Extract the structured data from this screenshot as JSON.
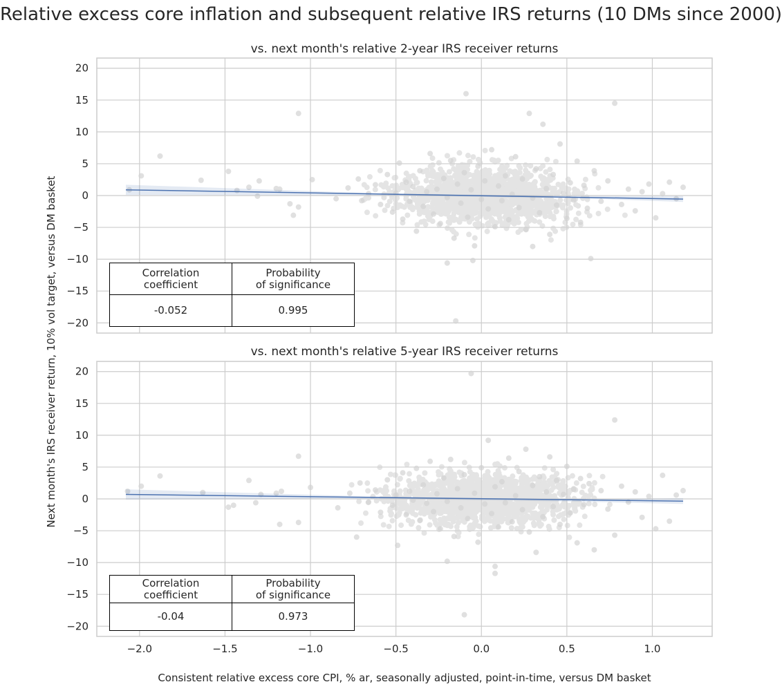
{
  "title": "Relative excess core inflation and subsequent relative IRS returns (10 DMs since 2000)",
  "xlabel": "Consistent relative excess core CPI, % ar, seasonally adjusted, point-in-time, versus DM basket",
  "ylabel": "Next month's IRS receiver return, 10% vol target, versus DM basket",
  "colors": {
    "points": "#d3d3d3",
    "regression": "#4c72b0",
    "grid": "#cccccc",
    "frame": "#cccccc"
  },
  "chart_data": [
    {
      "type": "scatter",
      "title": "vs. next month's relative 2-year IRS receiver returns",
      "xlim": [
        -2.25,
        1.35
      ],
      "ylim": [
        -21.6,
        21.6
      ],
      "xticks": [
        -2.0,
        -1.5,
        -1.0,
        -0.5,
        0.0,
        0.5,
        1.0
      ],
      "xtick_labels": [
        "−2.0",
        "−1.5",
        "−1.0",
        "−0.5",
        "0.0",
        "0.5",
        "1.0"
      ],
      "yticks": [
        20,
        15,
        10,
        5,
        0,
        -5,
        -10,
        -15,
        -20
      ],
      "ytick_labels": [
        "20",
        "15",
        "10",
        "5",
        "0",
        "−5",
        "−10",
        "−15",
        "−20"
      ],
      "grid": true,
      "regression": {
        "x": [
          -2.08,
          1.18
        ],
        "y": [
          0.9,
          -0.55
        ]
      },
      "points": [
        [
          -2.06,
          0.9
        ],
        [
          -1.99,
          3.1
        ],
        [
          -1.88,
          6.2
        ],
        [
          -1.64,
          2.4
        ],
        [
          -1.48,
          3.8
        ],
        [
          -1.43,
          0.8
        ],
        [
          -1.36,
          1.3
        ],
        [
          -1.3,
          2.3
        ],
        [
          -1.31,
          -0.1
        ],
        [
          -1.2,
          1.1
        ],
        [
          -1.18,
          1.0
        ],
        [
          -1.12,
          -1.3
        ],
        [
          -1.1,
          -3.1
        ],
        [
          -1.07,
          -1.8
        ],
        [
          -1.07,
          12.9
        ],
        [
          -0.99,
          2.5
        ],
        [
          -0.85,
          -0.5
        ],
        [
          -0.78,
          1.2
        ],
        [
          -0.72,
          2.6
        ],
        [
          -0.7,
          -0.8
        ],
        [
          -0.66,
          0.3
        ],
        [
          -0.62,
          1.7
        ],
        [
          -0.59,
          -1.4
        ],
        [
          -0.55,
          3.3
        ],
        [
          -0.52,
          -2.6
        ],
        [
          -0.5,
          0.4
        ],
        [
          -0.48,
          5.1
        ],
        [
          -0.46,
          -3.7
        ],
        [
          -0.44,
          2.1
        ],
        [
          -0.42,
          -0.9
        ],
        [
          -0.4,
          1.4
        ],
        [
          -0.38,
          -5.6
        ],
        [
          -0.36,
          3.9
        ],
        [
          -0.34,
          -1.7
        ],
        [
          -0.32,
          0.6
        ],
        [
          -0.3,
          6.6
        ],
        [
          -0.28,
          -2.9
        ],
        [
          -0.26,
          1.0
        ],
        [
          -0.24,
          -4.4
        ],
        [
          -0.22,
          2.7
        ],
        [
          -0.2,
          -0.3
        ],
        [
          -0.18,
          5.5
        ],
        [
          -0.16,
          -6.7
        ],
        [
          -0.14,
          1.8
        ],
        [
          -0.12,
          -1.2
        ],
        [
          -0.1,
          3.6
        ],
        [
          -0.09,
          16.0
        ],
        [
          -0.08,
          -3.4
        ],
        [
          -0.06,
          0.9
        ],
        [
          -0.04,
          -7.9
        ],
        [
          -0.02,
          4.6
        ],
        [
          0.0,
          -0.6
        ],
        [
          0.02,
          2.3
        ],
        [
          0.04,
          -2.1
        ],
        [
          0.06,
          7.2
        ],
        [
          0.08,
          -4.9
        ],
        [
          0.1,
          1.5
        ],
        [
          0.12,
          -0.8
        ],
        [
          0.14,
          3.1
        ],
        [
          0.16,
          -3.8
        ],
        [
          0.18,
          0.2
        ],
        [
          0.2,
          6.1
        ],
        [
          0.22,
          -1.9
        ],
        [
          0.24,
          2.6
        ],
        [
          0.26,
          -5.3
        ],
        [
          0.28,
          12.9
        ],
        [
          0.3,
          -0.4
        ],
        [
          0.32,
          4.2
        ],
        [
          0.34,
          -2.7
        ],
        [
          0.36,
          11.2
        ],
        [
          0.38,
          1.1
        ],
        [
          0.4,
          -6.1
        ],
        [
          0.42,
          3.3
        ],
        [
          0.44,
          -1.5
        ],
        [
          0.46,
          8.1
        ],
        [
          0.48,
          0.4
        ],
        [
          0.5,
          -3.6
        ],
        [
          0.52,
          2.0
        ],
        [
          0.54,
          -0.7
        ],
        [
          0.56,
          5.4
        ],
        [
          0.58,
          -4.2
        ],
        [
          0.6,
          1.6
        ],
        [
          0.62,
          -2.0
        ],
        [
          0.64,
          -9.9
        ],
        [
          0.66,
          3.9
        ],
        [
          0.7,
          -0.9
        ],
        [
          0.74,
          2.3
        ],
        [
          0.78,
          14.5
        ],
        [
          0.82,
          -1.4
        ],
        [
          0.86,
          1.0
        ],
        [
          0.9,
          -2.4
        ],
        [
          0.94,
          0.6
        ],
        [
          0.98,
          1.8
        ],
        [
          1.02,
          -3.5
        ],
        [
          1.06,
          0.3
        ],
        [
          1.1,
          2.1
        ],
        [
          1.14,
          -0.5
        ],
        [
          1.18,
          1.3
        ],
        [
          -0.2,
          -10.6
        ],
        [
          -0.05,
          -10.2
        ],
        [
          -0.15,
          -19.7
        ],
        [
          0.3,
          -8.0
        ]
      ],
      "stats": {
        "headers": [
          "Correlation\ncoefficient",
          "Probability\nof significance"
        ],
        "values": [
          "-0.052",
          "0.995"
        ]
      }
    },
    {
      "type": "scatter",
      "title": "vs. next month's relative 5-year IRS receiver returns",
      "xlim": [
        -2.25,
        1.35
      ],
      "ylim": [
        -21.6,
        21.6
      ],
      "xticks": [
        -2.0,
        -1.5,
        -1.0,
        -0.5,
        0.0,
        0.5,
        1.0
      ],
      "xtick_labels": [
        "−2.0",
        "−1.5",
        "−1.0",
        "−0.5",
        "0.0",
        "0.5",
        "1.0"
      ],
      "yticks": [
        20,
        15,
        10,
        5,
        0,
        -5,
        -10,
        -15,
        -20
      ],
      "ytick_labels": [
        "20",
        "15",
        "10",
        "5",
        "0",
        "−5",
        "−10",
        "−15",
        "−20"
      ],
      "grid": true,
      "regression": {
        "x": [
          -2.08,
          1.18
        ],
        "y": [
          0.7,
          -0.35
        ]
      },
      "points": [
        [
          -2.07,
          1.2
        ],
        [
          -1.99,
          2.0
        ],
        [
          -1.88,
          3.6
        ],
        [
          -1.63,
          1.0
        ],
        [
          -1.48,
          -1.3
        ],
        [
          -1.45,
          -1.0
        ],
        [
          -1.36,
          2.9
        ],
        [
          -1.32,
          -0.6
        ],
        [
          -1.29,
          0.7
        ],
        [
          -1.2,
          0.9
        ],
        [
          -1.17,
          1.2
        ],
        [
          -1.18,
          -4.0
        ],
        [
          -1.07,
          6.7
        ],
        [
          -1.07,
          -3.7
        ],
        [
          -1.0,
          1.8
        ],
        [
          -0.84,
          -1.4
        ],
        [
          -0.77,
          0.9
        ],
        [
          -0.73,
          -6.0
        ],
        [
          -0.71,
          2.5
        ],
        [
          -0.66,
          -0.5
        ],
        [
          -0.62,
          1.4
        ],
        [
          -0.59,
          -2.1
        ],
        [
          -0.55,
          3.0
        ],
        [
          -0.52,
          -1.0
        ],
        [
          -0.5,
          0.6
        ],
        [
          -0.49,
          -7.3
        ],
        [
          -0.46,
          4.1
        ],
        [
          -0.44,
          -2.5
        ],
        [
          -0.42,
          1.2
        ],
        [
          -0.4,
          -0.2
        ],
        [
          -0.38,
          4.8
        ],
        [
          -0.36,
          -3.4
        ],
        [
          -0.34,
          2.2
        ],
        [
          -0.32,
          -0.7
        ],
        [
          -0.3,
          5.9
        ],
        [
          -0.28,
          -2.0
        ],
        [
          -0.26,
          0.8
        ],
        [
          -0.24,
          -4.7
        ],
        [
          -0.22,
          3.3
        ],
        [
          -0.2,
          -0.4
        ],
        [
          -0.18,
          6.2
        ],
        [
          -0.16,
          -5.9
        ],
        [
          -0.14,
          1.6
        ],
        [
          -0.12,
          -1.4
        ],
        [
          -0.1,
          3.8
        ],
        [
          -0.08,
          -3.1
        ],
        [
          -0.06,
          19.7
        ],
        [
          -0.04,
          0.9
        ],
        [
          -0.02,
          -6.8
        ],
        [
          0.0,
          4.9
        ],
        [
          0.02,
          -0.8
        ],
        [
          0.04,
          9.2
        ],
        [
          0.06,
          -2.3
        ],
        [
          0.08,
          1.9
        ],
        [
          0.1,
          -4.4
        ],
        [
          0.12,
          2.7
        ],
        [
          0.14,
          -0.6
        ],
        [
          0.16,
          6.4
        ],
        [
          0.18,
          -3.6
        ],
        [
          0.2,
          0.5
        ],
        [
          0.22,
          4.3
        ],
        [
          0.24,
          -1.7
        ],
        [
          0.26,
          7.8
        ],
        [
          0.28,
          -5.2
        ],
        [
          0.3,
          2.1
        ],
        [
          0.32,
          -8.4
        ],
        [
          0.34,
          3.5
        ],
        [
          0.36,
          -2.8
        ],
        [
          0.38,
          1.1
        ],
        [
          0.4,
          6.6
        ],
        [
          0.42,
          -1.2
        ],
        [
          0.44,
          2.9
        ],
        [
          0.46,
          -4.0
        ],
        [
          0.48,
          0.7
        ],
        [
          0.5,
          5.1
        ],
        [
          0.52,
          -2.2
        ],
        [
          0.54,
          1.5
        ],
        [
          0.56,
          -6.9
        ],
        [
          0.58,
          3.2
        ],
        [
          0.6,
          -0.9
        ],
        [
          0.63,
          2.4
        ],
        [
          0.66,
          -8.0
        ],
        [
          0.7,
          1.3
        ],
        [
          0.74,
          -1.6
        ],
        [
          0.78,
          12.4
        ],
        [
          0.78,
          -5.7
        ],
        [
          0.82,
          2.0
        ],
        [
          0.86,
          -0.5
        ],
        [
          0.9,
          1.1
        ],
        [
          0.94,
          -2.9
        ],
        [
          0.98,
          0.4
        ],
        [
          1.02,
          -4.7
        ],
        [
          1.06,
          3.7
        ],
        [
          1.1,
          -3.5
        ],
        [
          1.14,
          0.6
        ],
        [
          1.18,
          1.3
        ],
        [
          -0.2,
          -9.8
        ],
        [
          0.08,
          -11.7
        ],
        [
          -0.1,
          -18.2
        ],
        [
          0.08,
          -10.6
        ]
      ],
      "stats": {
        "headers": [
          "Correlation\ncoefficient",
          "Probability\nof significance"
        ],
        "values": [
          "-0.04",
          "0.973"
        ]
      }
    }
  ]
}
